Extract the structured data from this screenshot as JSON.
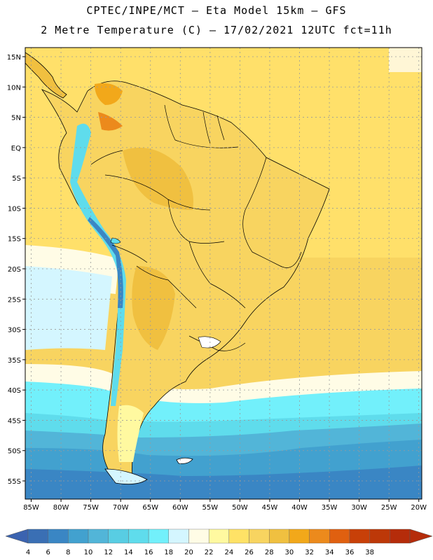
{
  "title": {
    "line1": "CPTEC/INPE/MCT –  Eta Model 15km – GFS",
    "line2": "2 Metre Temperature (C) – 17/02/2021 12UTC fct=11h"
  },
  "map": {
    "lat_labels": [
      "15N",
      "10N",
      "5N",
      "EQ",
      "5S",
      "10S",
      "15S",
      "20S",
      "25S",
      "30S",
      "35S",
      "40S",
      "45S",
      "50S",
      "55S"
    ],
    "lon_labels": [
      "85W",
      "80W",
      "75W",
      "70W",
      "65W",
      "60W",
      "55W",
      "50W",
      "45W",
      "40W",
      "35W",
      "30W",
      "25W",
      "20W"
    ],
    "lat_range": [
      -58,
      16.5
    ],
    "lon_range": [
      -86,
      -19.5
    ],
    "grid": true
  },
  "colorbar": {
    "labels": [
      "4",
      "6",
      "8",
      "10",
      "12",
      "14",
      "16",
      "18",
      "20",
      "22",
      "24",
      "26",
      "28",
      "30",
      "32",
      "34",
      "36",
      "38"
    ],
    "colors": [
      "#3a6fb4",
      "#3a86c4",
      "#42a1cf",
      "#52b5d8",
      "#58cde3",
      "#5fdcec",
      "#72f0fb",
      "#d4f6ff",
      "#fffce6",
      "#fff9a0",
      "#ffe266",
      "#f8d460",
      "#f0c040",
      "#f2a81a",
      "#ec8a1c",
      "#e06010",
      "#c84008",
      "#bd3808",
      "#b52c0a"
    ],
    "under_color": "#3b63b0",
    "over_color": "#b52c0a"
  }
}
